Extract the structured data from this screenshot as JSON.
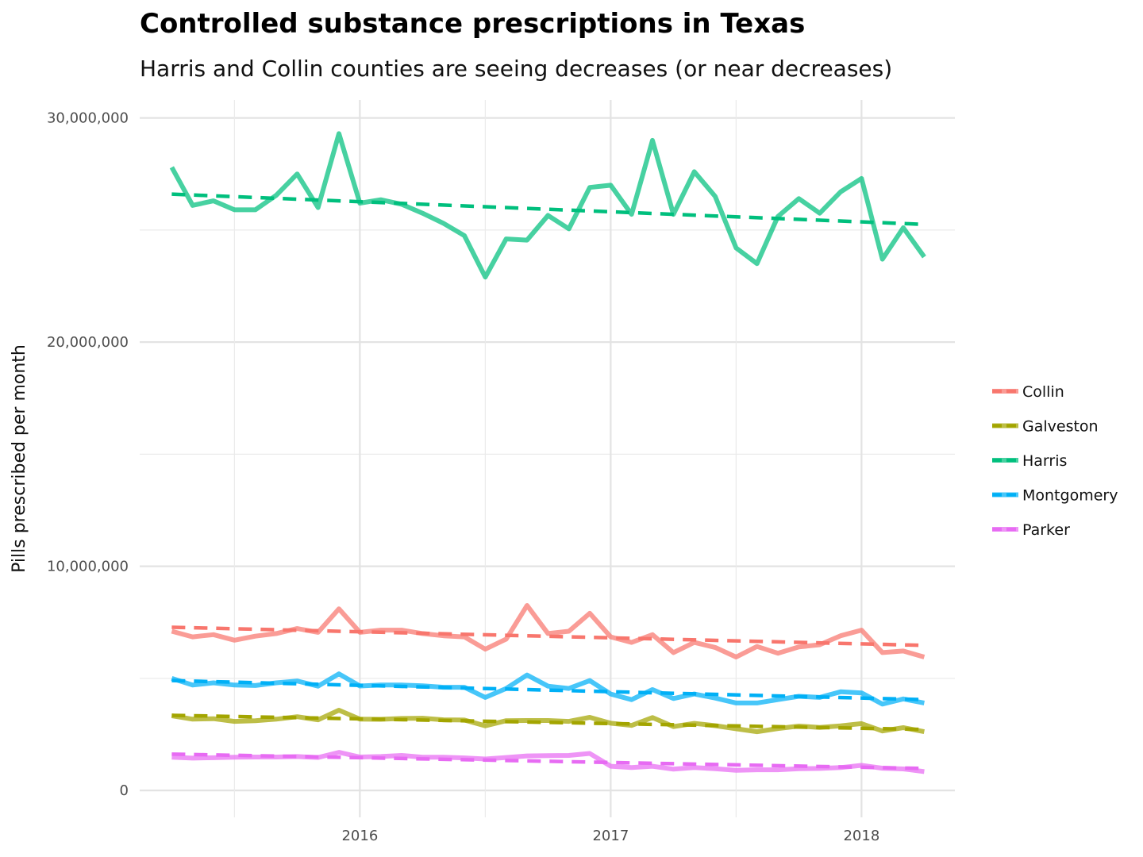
{
  "chart_data": {
    "type": "line",
    "title": "Controlled substance prescriptions in Texas",
    "subtitle": "Harris and Collin counties are seeing decreases (or near decreases)",
    "xlabel": "",
    "ylabel": "Pills prescribed per month",
    "x_ticks": [
      "2016",
      "2017",
      "2018"
    ],
    "y_ticks": [
      "0",
      "10,000,000",
      "20,000,000",
      "30,000,000"
    ],
    "ylim": [
      -1200000,
      30800000
    ],
    "xlim": [
      "2015-02-15",
      "2018-05-15"
    ],
    "grid": true,
    "legend_position": "right",
    "x": [
      "2015-04",
      "2015-05",
      "2015-06",
      "2015-07",
      "2015-08",
      "2015-09",
      "2015-10",
      "2015-11",
      "2015-12",
      "2016-01",
      "2016-02",
      "2016-03",
      "2016-04",
      "2016-05",
      "2016-06",
      "2016-07",
      "2016-08",
      "2016-09",
      "2016-10",
      "2016-11",
      "2016-12",
      "2017-01",
      "2017-02",
      "2017-03",
      "2017-04",
      "2017-05",
      "2017-06",
      "2017-07",
      "2017-08",
      "2017-09",
      "2017-10",
      "2017-11",
      "2017-12",
      "2018-01",
      "2018-02",
      "2018-03",
      "2018-04"
    ],
    "series": [
      {
        "name": "Collin",
        "color": "#f8766d",
        "values": [
          7100000,
          6850000,
          6950000,
          6700000,
          6880000,
          7000000,
          7220000,
          7050000,
          8100000,
          7050000,
          7150000,
          7150000,
          7000000,
          6900000,
          6850000,
          6300000,
          6750000,
          8250000,
          7000000,
          7100000,
          7900000,
          6850000,
          6600000,
          6950000,
          6150000,
          6600000,
          6380000,
          5950000,
          6420000,
          6120000,
          6400000,
          6500000,
          6900000,
          7150000,
          6150000,
          6220000,
          5950000
        ],
        "trend": [
          7280000,
          6470000
        ]
      },
      {
        "name": "Galveston",
        "color": "#a3a500",
        "values": [
          3330000,
          3180000,
          3200000,
          3080000,
          3110000,
          3180000,
          3290000,
          3150000,
          3580000,
          3180000,
          3170000,
          3210000,
          3220000,
          3150000,
          3140000,
          2880000,
          3110000,
          3120000,
          3120000,
          3080000,
          3260000,
          3000000,
          2900000,
          3250000,
          2850000,
          2990000,
          2890000,
          2750000,
          2620000,
          2760000,
          2870000,
          2810000,
          2880000,
          2980000,
          2650000,
          2800000,
          2620000
        ],
        "trend": [
          3350000,
          2720000
        ]
      },
      {
        "name": "Harris",
        "color": "#00bf7d",
        "values": [
          27800000,
          26100000,
          26300000,
          25900000,
          25900000,
          26550000,
          27500000,
          26000000,
          29300000,
          26200000,
          26350000,
          26150000,
          25750000,
          25300000,
          24750000,
          22900000,
          24600000,
          24550000,
          25650000,
          25050000,
          26900000,
          27000000,
          25700000,
          29000000,
          25700000,
          27600000,
          26500000,
          24200000,
          23500000,
          25600000,
          26400000,
          25750000,
          26700000,
          27300000,
          23700000,
          25100000,
          23800000
        ],
        "trend": [
          26600000,
          25250000
        ]
      },
      {
        "name": "Montgomery",
        "color": "#00b0f6",
        "values": [
          5000000,
          4700000,
          4800000,
          4700000,
          4680000,
          4800000,
          4880000,
          4650000,
          5200000,
          4660000,
          4700000,
          4700000,
          4670000,
          4600000,
          4600000,
          4150000,
          4550000,
          5150000,
          4650000,
          4550000,
          4900000,
          4300000,
          4050000,
          4500000,
          4100000,
          4300000,
          4120000,
          3900000,
          3900000,
          4050000,
          4200000,
          4150000,
          4400000,
          4350000,
          3850000,
          4080000,
          3900000
        ],
        "trend": [
          4900000,
          4050000
        ]
      },
      {
        "name": "Parker",
        "color": "#e76bf3",
        "values": [
          1480000,
          1440000,
          1460000,
          1480000,
          1490000,
          1490000,
          1510000,
          1470000,
          1700000,
          1490000,
          1510000,
          1560000,
          1480000,
          1480000,
          1450000,
          1400000,
          1470000,
          1540000,
          1550000,
          1560000,
          1650000,
          1080000,
          1020000,
          1080000,
          950000,
          1020000,
          970000,
          900000,
          920000,
          920000,
          970000,
          980000,
          1020000,
          1120000,
          990000,
          960000,
          840000
        ],
        "trend": [
          1620000,
          980000
        ]
      }
    ]
  }
}
